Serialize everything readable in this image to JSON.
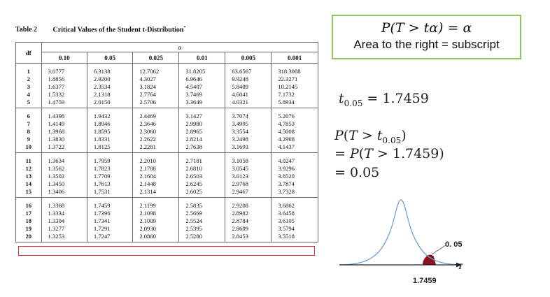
{
  "table": {
    "label": "Table 2",
    "title": "Critical Values of the Student t-Distribution",
    "title_mark": "*",
    "df_header": "df",
    "alpha_header": "α",
    "alpha_columns": [
      "0.10",
      "0.05",
      "0.025",
      "0.01",
      "0.005",
      "0.001"
    ],
    "blocks": [
      {
        "df": [
          "1",
          "2",
          "3",
          "4",
          "5"
        ],
        "cols": [
          [
            "3.0777",
            "1.8856",
            "1.6377",
            "1.5332",
            "1.4759"
          ],
          [
            "6.3138",
            "2.9200",
            "2.3534",
            "2.1318",
            "2.0150"
          ],
          [
            "12.7062",
            "4.3027",
            "3.1824",
            "2.7764",
            "2.5706"
          ],
          [
            "31.8205",
            "6.9646",
            "4.5407",
            "3.7469",
            "3.3649"
          ],
          [
            "63.6567",
            "9.9248",
            "5.8409",
            "4.6041",
            "4.0321"
          ],
          [
            "318.3088",
            "22.3271",
            "10.2145",
            "7.1732",
            "5.8934"
          ]
        ]
      },
      {
        "df": [
          "6",
          "7",
          "8",
          "9",
          "10"
        ],
        "cols": [
          [
            "1.4398",
            "1.4149",
            "1.3968",
            "1.3830",
            "1.3722"
          ],
          [
            "1.9432",
            "1.8946",
            "1.8595",
            "1.8331",
            "1.8125"
          ],
          [
            "2.4469",
            "2.3646",
            "2.3060",
            "2.2622",
            "2.2281"
          ],
          [
            "3.1427",
            "2.9980",
            "2.8965",
            "2.8214",
            "2.7638"
          ],
          [
            "3.7074",
            "3.4995",
            "3.3554",
            "3.2498",
            "3.1693"
          ],
          [
            "5.2076",
            "4.7853",
            "4.5008",
            "4.2968",
            "4.1437"
          ]
        ]
      },
      {
        "df": [
          "11",
          "12",
          "13",
          "14",
          "15"
        ],
        "cols": [
          [
            "1.3634",
            "1.3562",
            "1.3502",
            "1.3450",
            "1.3406"
          ],
          [
            "1.7959",
            "1.7823",
            "1.7709",
            "1.7613",
            "1.7531"
          ],
          [
            "2.2010",
            "2.1788",
            "2.1604",
            "2.1448",
            "2.1314"
          ],
          [
            "2.7181",
            "2.6810",
            "2.6503",
            "2.6245",
            "2.6025"
          ],
          [
            "3.1058",
            "3.0545",
            "3.0123",
            "2.9768",
            "2.9467"
          ],
          [
            "4.0247",
            "3.9296",
            "3.8520",
            "3.7874",
            "3.7328"
          ]
        ]
      },
      {
        "df": [
          "16",
          "17",
          "18",
          "19",
          "20"
        ],
        "cols": [
          [
            "1.3368",
            "1.3334",
            "1.3304",
            "1.3277",
            "1.3253"
          ],
          [
            "1.7459",
            "1.7396",
            "1.7341",
            "1.7291",
            "1.7247"
          ],
          [
            "2.1199",
            "2.1098",
            "2.1009",
            "2.0930",
            "2.0860"
          ],
          [
            "2.5835",
            "2.5669",
            "2.5524",
            "2.5395",
            "2.5280"
          ],
          [
            "2.9208",
            "2.8982",
            "2.8784",
            "2.8609",
            "2.8453"
          ],
          [
            "3.6862",
            "3.6458",
            "3.6105",
            "3.5794",
            "3.5518"
          ]
        ]
      }
    ]
  },
  "formula_box": {
    "line1": "P(T > tα) = α",
    "line2": "Area to the right = subscript"
  },
  "math": {
    "t_sub": "0.05",
    "t_value": "1.7459",
    "prob_result": "0.05"
  },
  "curve": {
    "alpha_label": "0. 05",
    "axis_label": "T",
    "t_label": "1.7459"
  },
  "colors": {
    "highlight": "#d9303a",
    "box_border": "#8ec860",
    "curve": "#6aa2d8",
    "tail": "#8b1020"
  }
}
